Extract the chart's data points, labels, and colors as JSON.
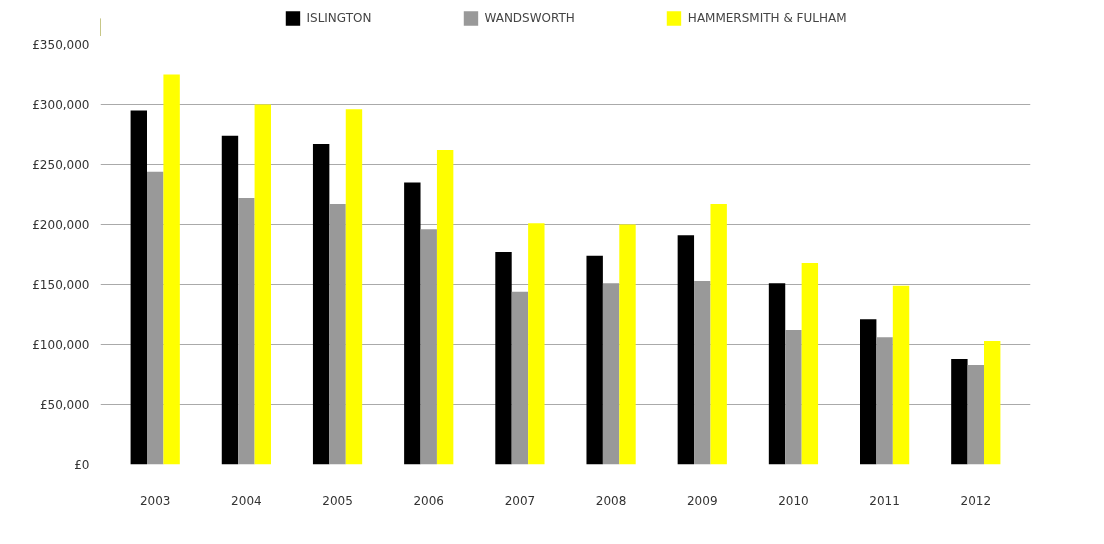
{
  "chart_data": {
    "type": "bar",
    "categories": [
      "2003",
      "2004",
      "2005",
      "2006",
      "2007",
      "2008",
      "2009",
      "2010",
      "2011",
      "2012"
    ],
    "series": [
      {
        "name": "ISLINGTON",
        "color": "#000000",
        "values": [
          295000,
          274000,
          267000,
          235000,
          177000,
          174000,
          191000,
          151000,
          121000,
          88000
        ]
      },
      {
        "name": "WANDSWORTH",
        "color": "#999999",
        "values": [
          244000,
          222000,
          217000,
          196000,
          144000,
          151000,
          153000,
          112000,
          106000,
          83000
        ]
      },
      {
        "name": "HAMMERSMITH & FULHAM",
        "color": "#ffff00",
        "values": [
          325000,
          300000,
          296000,
          262000,
          201000,
          200000,
          217000,
          168000,
          149000,
          103000
        ]
      }
    ],
    "ylim": [
      0,
      350000
    ],
    "yticks": [
      {
        "value": 0,
        "label": "£0"
      },
      {
        "value": 50000,
        "label": "£50,000"
      },
      {
        "value": 100000,
        "label": "£100,000"
      },
      {
        "value": 150000,
        "label": "£150,000"
      },
      {
        "value": 200000,
        "label": "£200,000"
      },
      {
        "value": 250000,
        "label": "£250,000"
      },
      {
        "value": 300000,
        "label": "£300,000"
      },
      {
        "value": 350000,
        "label": "£350,000"
      }
    ],
    "grid": "y",
    "legend": "top"
  }
}
